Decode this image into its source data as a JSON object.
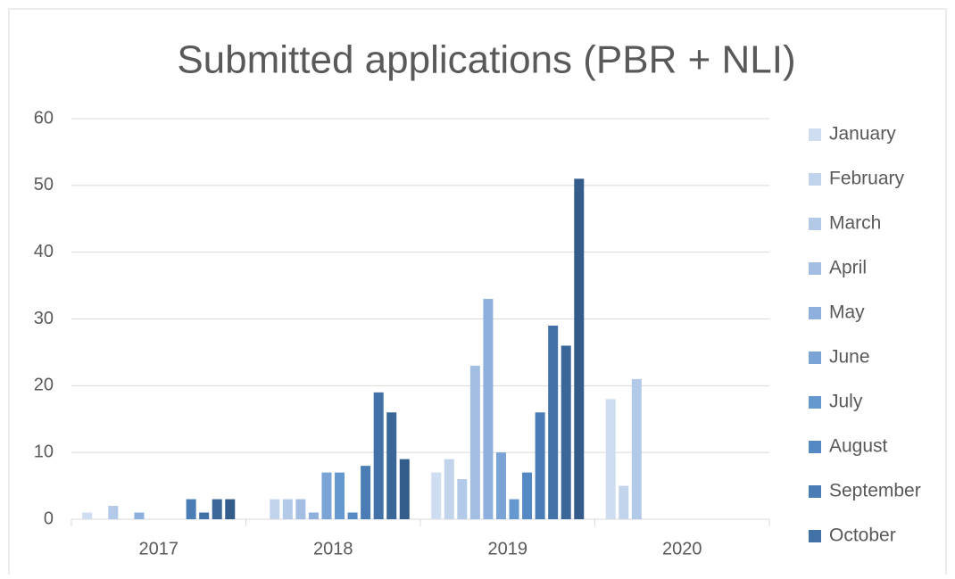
{
  "chart_data": {
    "type": "bar",
    "title": "Submitted applications (PBR + NLI)",
    "categories": [
      "2017",
      "2018",
      "2019",
      "2020"
    ],
    "series": [
      {
        "name": "January",
        "color": "#cfddf1",
        "values": [
          1,
          0,
          7,
          18
        ]
      },
      {
        "name": "February",
        "color": "#c2d4ec",
        "values": [
          0,
          3,
          9,
          5
        ]
      },
      {
        "name": "March",
        "color": "#b2c9e7",
        "values": [
          2,
          3,
          6,
          21
        ]
      },
      {
        "name": "April",
        "color": "#a3bee2",
        "values": [
          0,
          3,
          23,
          null
        ]
      },
      {
        "name": "May",
        "color": "#8fb0dc",
        "values": [
          1,
          1,
          33,
          null
        ]
      },
      {
        "name": "June",
        "color": "#7aa3d6",
        "values": [
          0,
          7,
          10,
          null
        ]
      },
      {
        "name": "July",
        "color": "#6698d0",
        "values": [
          0,
          7,
          3,
          null
        ]
      },
      {
        "name": "August",
        "color": "#5489c3",
        "values": [
          0,
          1,
          7,
          null
        ]
      },
      {
        "name": "September",
        "color": "#4a7db6",
        "values": [
          3,
          8,
          16,
          null
        ]
      },
      {
        "name": "October",
        "color": "#4171a7",
        "values": [
          1,
          19,
          29,
          null
        ]
      },
      {
        "color": "#3a6698",
        "values": [
          3,
          16,
          26,
          null
        ]
      },
      {
        "color": "#335c8b",
        "values": [
          3,
          9,
          51,
          null
        ]
      }
    ],
    "ylim": [
      0,
      60
    ],
    "yticks": [
      0,
      10,
      20,
      30,
      40,
      50,
      60
    ],
    "grid": true
  }
}
